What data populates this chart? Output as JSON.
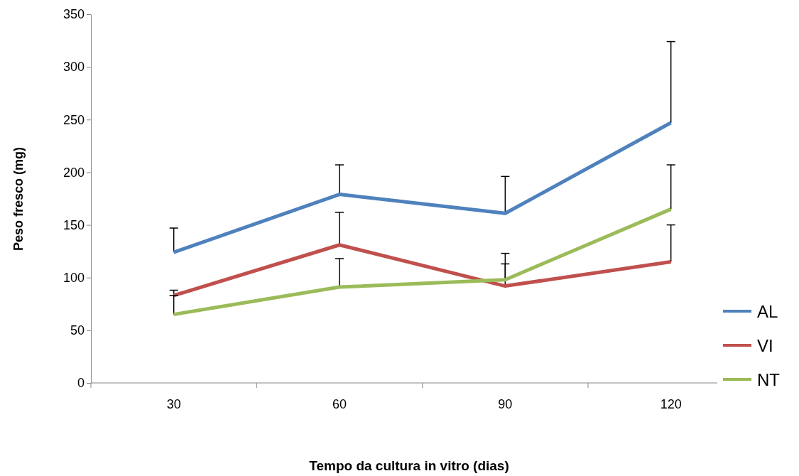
{
  "chart_data": {
    "type": "line",
    "xlabel": "Tempo da cultura in vitro (dias)",
    "ylabel": "Peso fresco (mg)",
    "categories": [
      "30",
      "60",
      "90",
      "120"
    ],
    "series": [
      {
        "name": "AL",
        "color": "#4f81bd",
        "values": [
          124,
          179,
          161,
          247
        ],
        "errors": [
          [
            124,
            147
          ],
          [
            179,
            207
          ],
          [
            161,
            196
          ],
          [
            247,
            324
          ]
        ]
      },
      {
        "name": "VI",
        "color": "#c0504d",
        "values": [
          83,
          131,
          92,
          115
        ],
        "errors": [
          [
            83,
            88
          ],
          [
            131,
            162
          ],
          [
            92,
            113
          ],
          [
            115,
            150
          ]
        ]
      },
      {
        "name": "NT",
        "color": "#9bbb59",
        "values": [
          65,
          91,
          98,
          165
        ],
        "errors": [
          [
            65,
            83
          ],
          [
            91,
            118
          ],
          [
            98,
            123
          ],
          [
            165,
            207
          ]
        ]
      }
    ],
    "ylim": [
      0,
      350
    ],
    "yticks": [
      0,
      50,
      100,
      150,
      200,
      250,
      300,
      350
    ],
    "legend": "bottom right",
    "marker": "none",
    "line_style": "solid",
    "grid": false
  }
}
